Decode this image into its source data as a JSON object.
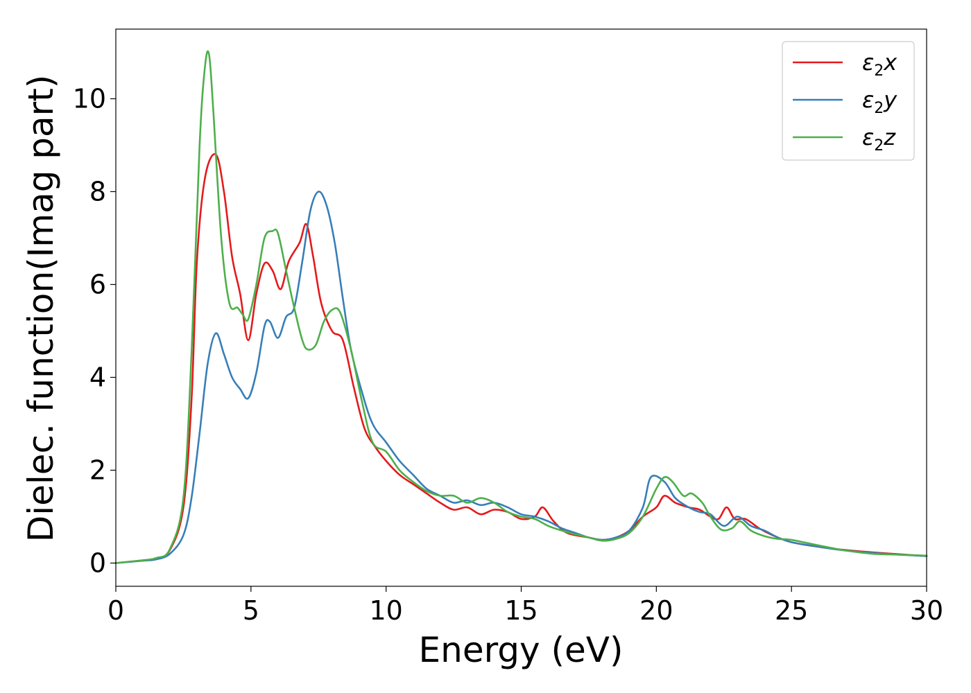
{
  "chart_data": {
    "type": "line",
    "xlabel": "Energy (eV)",
    "ylabel": "Dielec. function(Imag part)",
    "xlim": [
      0,
      30
    ],
    "ylim": [
      -0.5,
      11.5
    ],
    "xticks": [
      "0",
      "5",
      "10",
      "15",
      "20",
      "25",
      "30"
    ],
    "yticks": [
      "0",
      "2",
      "4",
      "6",
      "8",
      "10"
    ],
    "grid": false,
    "legend_position": "top-right",
    "series": [
      {
        "name": "ε2x",
        "symbol": "ε",
        "sub": "2",
        "axis": "x",
        "color": "#e41a1c",
        "points": [
          [
            0,
            0
          ],
          [
            1,
            0.06
          ],
          [
            1.5,
            0.1
          ],
          [
            2,
            0.28
          ],
          [
            2.5,
            1.2
          ],
          [
            2.8,
            3.5
          ],
          [
            3.0,
            6.5
          ],
          [
            3.3,
            8.3
          ],
          [
            3.7,
            8.8
          ],
          [
            4.0,
            8.0
          ],
          [
            4.3,
            6.6
          ],
          [
            4.6,
            5.8
          ],
          [
            4.9,
            4.8
          ],
          [
            5.2,
            5.8
          ],
          [
            5.5,
            6.45
          ],
          [
            5.8,
            6.3
          ],
          [
            6.1,
            5.9
          ],
          [
            6.4,
            6.5
          ],
          [
            6.8,
            6.9
          ],
          [
            7.05,
            7.3
          ],
          [
            7.3,
            6.6
          ],
          [
            7.6,
            5.6
          ],
          [
            8.0,
            5.0
          ],
          [
            8.4,
            4.8
          ],
          [
            8.8,
            3.8
          ],
          [
            9.2,
            2.9
          ],
          [
            9.6,
            2.5
          ],
          [
            10,
            2.2
          ],
          [
            10.5,
            1.9
          ],
          [
            11,
            1.7
          ],
          [
            11.5,
            1.5
          ],
          [
            12,
            1.3
          ],
          [
            12.5,
            1.15
          ],
          [
            13,
            1.2
          ],
          [
            13.5,
            1.05
          ],
          [
            14,
            1.15
          ],
          [
            14.5,
            1.1
          ],
          [
            15,
            0.95
          ],
          [
            15.5,
            1.0
          ],
          [
            15.8,
            1.2
          ],
          [
            16.2,
            0.9
          ],
          [
            16.7,
            0.65
          ],
          [
            17.5,
            0.55
          ],
          [
            18,
            0.5
          ],
          [
            18.5,
            0.55
          ],
          [
            19,
            0.7
          ],
          [
            19.5,
            1.0
          ],
          [
            20,
            1.2
          ],
          [
            20.3,
            1.45
          ],
          [
            20.7,
            1.3
          ],
          [
            21.2,
            1.2
          ],
          [
            21.6,
            1.15
          ],
          [
            22,
            1.0
          ],
          [
            22.3,
            0.95
          ],
          [
            22.6,
            1.2
          ],
          [
            22.9,
            0.95
          ],
          [
            23.3,
            0.95
          ],
          [
            23.8,
            0.75
          ],
          [
            24.3,
            0.6
          ],
          [
            25,
            0.45
          ],
          [
            26,
            0.35
          ],
          [
            27,
            0.28
          ],
          [
            28,
            0.23
          ],
          [
            29,
            0.19
          ],
          [
            30,
            0.15
          ]
        ]
      },
      {
        "name": "ε2y",
        "symbol": "ε",
        "sub": "2",
        "axis": "y",
        "color": "#377eb8",
        "points": [
          [
            0,
            0
          ],
          [
            1,
            0.05
          ],
          [
            1.5,
            0.08
          ],
          [
            2,
            0.2
          ],
          [
            2.5,
            0.6
          ],
          [
            2.8,
            1.4
          ],
          [
            3.1,
            2.8
          ],
          [
            3.4,
            4.3
          ],
          [
            3.7,
            4.95
          ],
          [
            4.0,
            4.5
          ],
          [
            4.3,
            4.0
          ],
          [
            4.6,
            3.75
          ],
          [
            4.9,
            3.55
          ],
          [
            5.2,
            4.1
          ],
          [
            5.5,
            5.1
          ],
          [
            5.7,
            5.2
          ],
          [
            6.0,
            4.85
          ],
          [
            6.3,
            5.3
          ],
          [
            6.6,
            5.5
          ],
          [
            6.9,
            6.5
          ],
          [
            7.2,
            7.6
          ],
          [
            7.5,
            8.0
          ],
          [
            7.8,
            7.7
          ],
          [
            8.1,
            6.9
          ],
          [
            8.4,
            5.7
          ],
          [
            8.7,
            4.6
          ],
          [
            9.1,
            3.7
          ],
          [
            9.5,
            3.0
          ],
          [
            10,
            2.6
          ],
          [
            10.5,
            2.2
          ],
          [
            11,
            1.9
          ],
          [
            11.5,
            1.6
          ],
          [
            12,
            1.45
          ],
          [
            12.5,
            1.3
          ],
          [
            13,
            1.35
          ],
          [
            13.5,
            1.25
          ],
          [
            14,
            1.3
          ],
          [
            14.5,
            1.2
          ],
          [
            15,
            1.05
          ],
          [
            15.5,
            1.0
          ],
          [
            16,
            0.9
          ],
          [
            16.5,
            0.75
          ],
          [
            17,
            0.65
          ],
          [
            17.5,
            0.55
          ],
          [
            18,
            0.5
          ],
          [
            18.5,
            0.55
          ],
          [
            19,
            0.7
          ],
          [
            19.5,
            1.2
          ],
          [
            19.8,
            1.85
          ],
          [
            20.3,
            1.75
          ],
          [
            20.7,
            1.4
          ],
          [
            21.2,
            1.2
          ],
          [
            21.6,
            1.1
          ],
          [
            22,
            1.05
          ],
          [
            22.5,
            0.8
          ],
          [
            23,
            1.0
          ],
          [
            23.5,
            0.8
          ],
          [
            24,
            0.7
          ],
          [
            24.5,
            0.55
          ],
          [
            25,
            0.45
          ],
          [
            26,
            0.35
          ],
          [
            27,
            0.27
          ],
          [
            28,
            0.22
          ],
          [
            29,
            0.18
          ],
          [
            30,
            0.15
          ]
        ]
      },
      {
        "name": "ε2z",
        "symbol": "ε",
        "sub": "2",
        "axis": "z",
        "color": "#4daf4a",
        "points": [
          [
            0,
            0
          ],
          [
            1,
            0.06
          ],
          [
            1.5,
            0.11
          ],
          [
            2,
            0.3
          ],
          [
            2.5,
            1.4
          ],
          [
            2.8,
            4.5
          ],
          [
            3.1,
            9.0
          ],
          [
            3.3,
            10.7
          ],
          [
            3.45,
            10.95
          ],
          [
            3.6,
            9.8
          ],
          [
            3.9,
            7.0
          ],
          [
            4.2,
            5.6
          ],
          [
            4.5,
            5.5
          ],
          [
            4.7,
            5.35
          ],
          [
            4.9,
            5.25
          ],
          [
            5.2,
            6.0
          ],
          [
            5.5,
            7.0
          ],
          [
            5.8,
            7.15
          ],
          [
            6.0,
            7.1
          ],
          [
            6.3,
            6.3
          ],
          [
            6.6,
            5.5
          ],
          [
            6.9,
            4.8
          ],
          [
            7.1,
            4.6
          ],
          [
            7.4,
            4.7
          ],
          [
            7.7,
            5.2
          ],
          [
            8.0,
            5.45
          ],
          [
            8.3,
            5.4
          ],
          [
            8.7,
            4.6
          ],
          [
            9.1,
            3.5
          ],
          [
            9.5,
            2.6
          ],
          [
            10,
            2.4
          ],
          [
            10.5,
            2.0
          ],
          [
            11,
            1.75
          ],
          [
            11.5,
            1.55
          ],
          [
            12,
            1.45
          ],
          [
            12.5,
            1.45
          ],
          [
            13,
            1.3
          ],
          [
            13.5,
            1.4
          ],
          [
            14,
            1.3
          ],
          [
            14.5,
            1.1
          ],
          [
            15,
            1.0
          ],
          [
            15.5,
            0.95
          ],
          [
            16,
            0.8
          ],
          [
            16.5,
            0.7
          ],
          [
            17,
            0.62
          ],
          [
            17.5,
            0.55
          ],
          [
            18,
            0.48
          ],
          [
            18.5,
            0.52
          ],
          [
            19,
            0.65
          ],
          [
            19.5,
            1.0
          ],
          [
            20,
            1.6
          ],
          [
            20.3,
            1.85
          ],
          [
            20.6,
            1.75
          ],
          [
            21,
            1.45
          ],
          [
            21.3,
            1.5
          ],
          [
            21.7,
            1.3
          ],
          [
            22,
            1.0
          ],
          [
            22.4,
            0.72
          ],
          [
            22.8,
            0.75
          ],
          [
            23.1,
            0.9
          ],
          [
            23.5,
            0.7
          ],
          [
            24,
            0.58
          ],
          [
            24.5,
            0.52
          ],
          [
            25,
            0.5
          ],
          [
            26,
            0.38
          ],
          [
            27,
            0.27
          ],
          [
            28,
            0.2
          ],
          [
            29,
            0.18
          ],
          [
            30,
            0.16
          ]
        ]
      }
    ]
  }
}
